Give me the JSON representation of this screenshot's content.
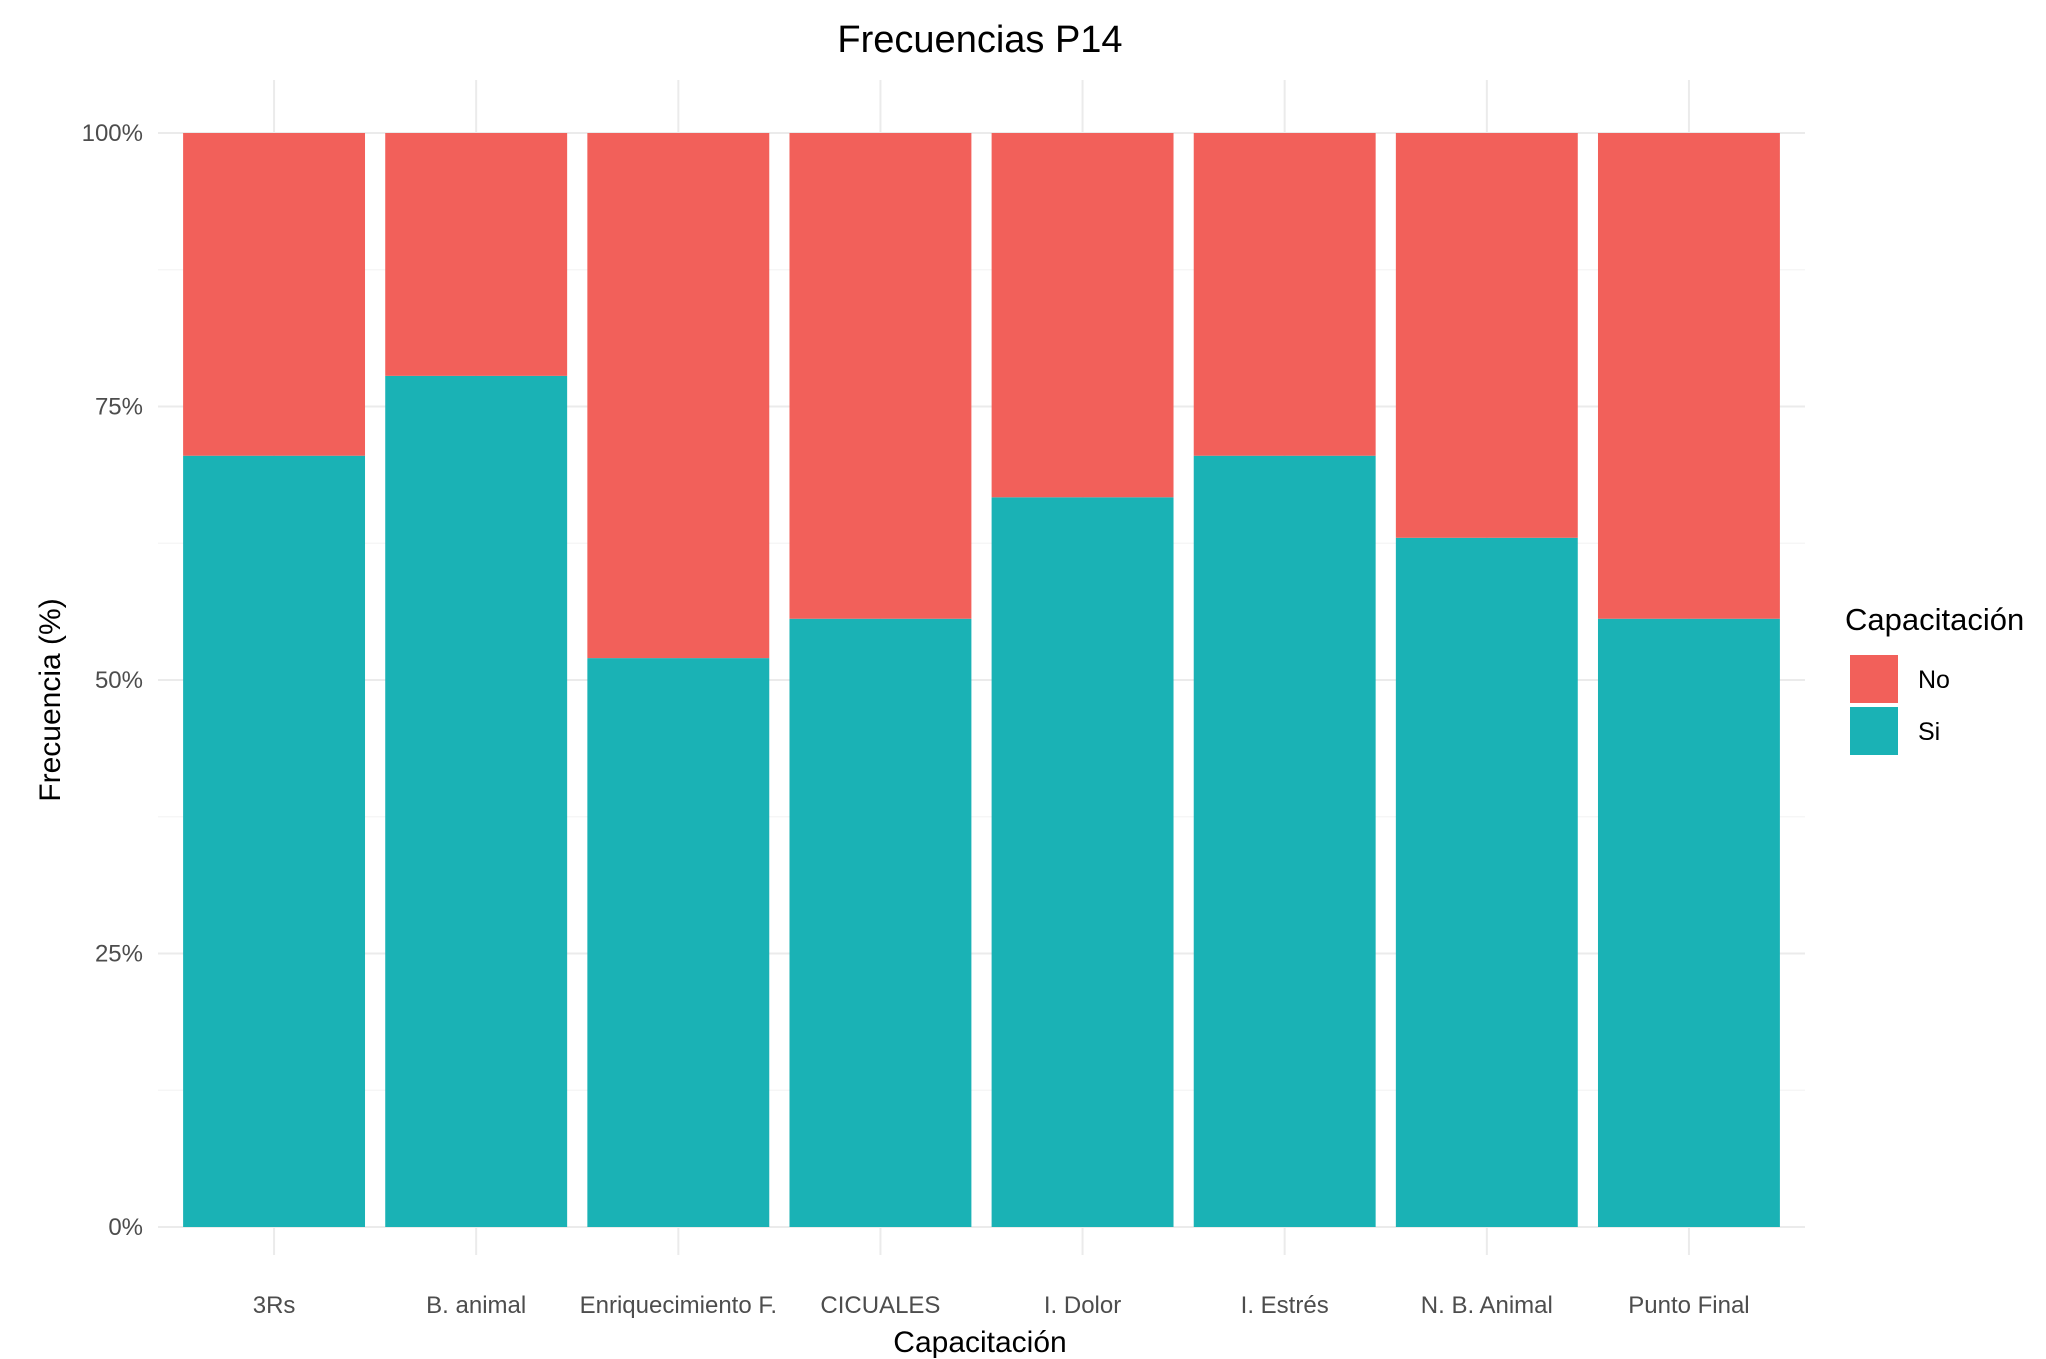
{
  "chart_data": {
    "type": "bar",
    "stacked": true,
    "title": "Frecuencias P14",
    "xlabel": "Capacitación",
    "ylabel": "Frecuencia (%)",
    "ylim": [
      0,
      1
    ],
    "y_ticks": [
      {
        "value": 0,
        "label": "0%"
      },
      {
        "value": 0.25,
        "label": "25%"
      },
      {
        "value": 0.5,
        "label": "50%"
      },
      {
        "value": 0.75,
        "label": "75%"
      },
      {
        "value": 1,
        "label": "100%"
      }
    ],
    "categories": [
      "3Rs",
      "B. animal",
      "Enriquecimiento F.",
      "CICUALES",
      "I. Dolor",
      "I. Estrés",
      "N. B. Animal",
      "Punto Final"
    ],
    "series": [
      {
        "name": "Si",
        "color": "#1ab2b5",
        "values": [
          0.705,
          0.778,
          0.52,
          0.556,
          0.667,
          0.705,
          0.63,
          0.556
        ]
      },
      {
        "name": "No",
        "color": "#f2605a",
        "values": [
          0.295,
          0.222,
          0.48,
          0.444,
          0.333,
          0.295,
          0.37,
          0.444
        ]
      }
    ],
    "legend": {
      "title": "Capacitación",
      "placement": "right",
      "items": [
        {
          "label": "No",
          "color": "#f2605a"
        },
        {
          "label": "Si",
          "color": "#1ab2b5"
        }
      ]
    },
    "grid": true
  }
}
